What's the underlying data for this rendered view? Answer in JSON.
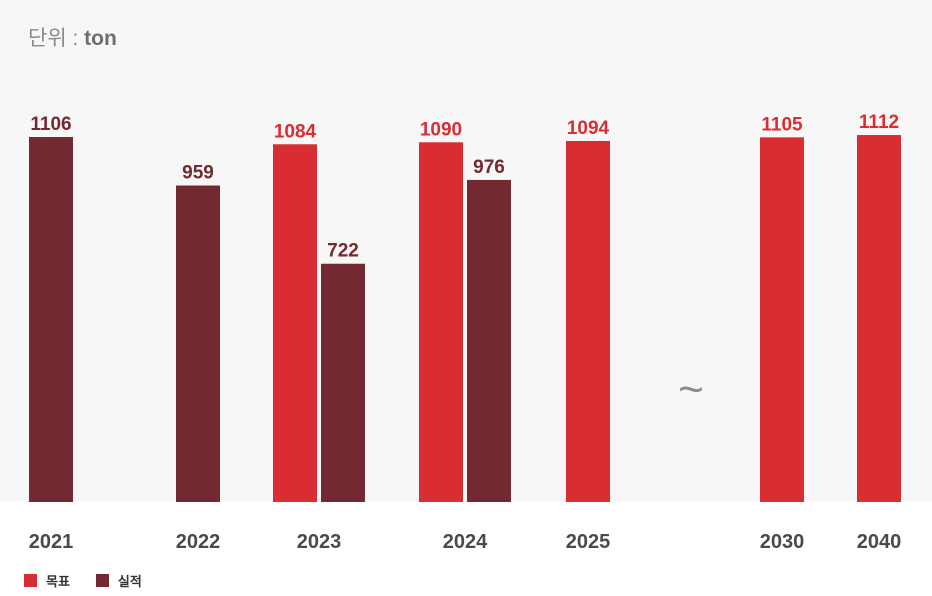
{
  "unit": {
    "prefix": "단위 : ",
    "value": "ton"
  },
  "legend": {
    "target_label": "목표",
    "actual_label": "실적"
  },
  "colors": {
    "target": "#d92d33",
    "actual": "#722932",
    "plot_background": "#f7f7f7",
    "axis_text": "#4a4a4a"
  },
  "break_symbol": "~",
  "chart_data": {
    "type": "bar",
    "categories": [
      "2021",
      "2022",
      "2023",
      "2024",
      "2025",
      "2030",
      "2040"
    ],
    "series": [
      {
        "name": "목표",
        "values": [
          null,
          null,
          1084,
          1090,
          1094,
          1105,
          1112
        ]
      },
      {
        "name": "실적",
        "values": [
          1106,
          959,
          722,
          976,
          null,
          null,
          null
        ]
      }
    ],
    "ylim": [
      0,
      1200
    ],
    "grid": false,
    "legend_position": "bottom-left",
    "axis_break_between": [
      "2025",
      "2030"
    ]
  }
}
